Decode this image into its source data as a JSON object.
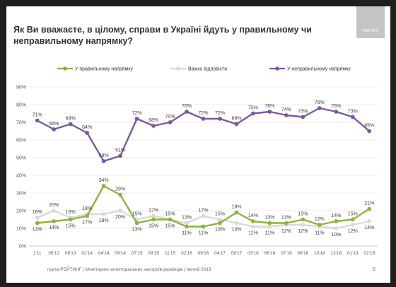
{
  "slide": {
    "title": "Як Ви вважаєте, в цілому, справи в Україні йдуть у правильному чи неправильному напрямку?",
    "logo_text": "РЕЙТИНГ",
    "footer": "група РЕЙТИНГ |  Моніторинг електоральних настроїв українців | лютий  2019",
    "page_number": "5"
  },
  "colors": {
    "right": "#8cb33e",
    "hard": "#d9d9d9",
    "wrong": "#7a5a9c",
    "axis_text": "#555555",
    "grid": "#e6e6e6"
  },
  "chart_data": {
    "type": "line",
    "x": [
      "1'11",
      "05'12",
      "08'13",
      "02'14",
      "04'14",
      "09'14",
      "07'15",
      "09'15",
      "11'15",
      "02'16",
      "09'16",
      "04'17",
      "08'17",
      "03'18",
      "06'18",
      "07'18",
      "09'18",
      "10'18",
      "12'18",
      "01'19",
      "02'19"
    ],
    "yticks": [
      "0%",
      "10%",
      "20%",
      "30%",
      "40%",
      "50%",
      "60%",
      "70%",
      "80%",
      "90%"
    ],
    "ylim": [
      0,
      90
    ],
    "grid": true,
    "legend_position": "top",
    "series": [
      {
        "name": "У правильному напрямку",
        "key": "right",
        "values": [
          13,
          14,
          15,
          17,
          34,
          29,
          13,
          15,
          15,
          11,
          11,
          13,
          19,
          14,
          13,
          13,
          15,
          12,
          14,
          15,
          21
        ]
      },
      {
        "name": "Важко відповісти",
        "key": "hard",
        "values": [
          16,
          20,
          16,
          18,
          18,
          20,
          15,
          17,
          15,
          13,
          17,
          15,
          13,
          11,
          11,
          12,
          12,
          11,
          10,
          12,
          14
        ]
      },
      {
        "name": "У неправильному напрямку",
        "key": "wrong",
        "values": [
          71,
          66,
          69,
          64,
          48,
          51,
          72,
          68,
          70,
          76,
          72,
          72,
          69,
          75,
          76,
          74,
          73,
          78,
          76,
          73,
          65
        ]
      }
    ],
    "data_labels": {
      "right": [
        "13%",
        "14%",
        "15%",
        "17%",
        "34%",
        "29%",
        "13%",
        "15%",
        "15%",
        "11%",
        "11%",
        "13%",
        "19%",
        "14%",
        "13%",
        "13%",
        "15%",
        "12%",
        "14%",
        "15%",
        "21%"
      ],
      "hard": [
        "16%",
        "20%",
        "16%",
        "18%",
        "18%",
        "20%",
        "15%",
        "17%",
        "15%",
        "13%",
        "17%",
        "15%",
        "13%",
        "11%",
        "11%",
        "12%",
        "12%",
        "11%",
        "10%",
        "12%",
        "14%"
      ],
      "wrong": [
        "71%",
        "66%",
        "69%",
        "64%",
        "48%",
        "51%",
        "72%",
        "68%",
        "70%",
        "76%",
        "72%",
        "72%",
        "69%",
        "75%",
        "76%",
        "74%",
        "73%",
        "78%",
        "76%",
        "73%",
        "65%"
      ]
    }
  }
}
